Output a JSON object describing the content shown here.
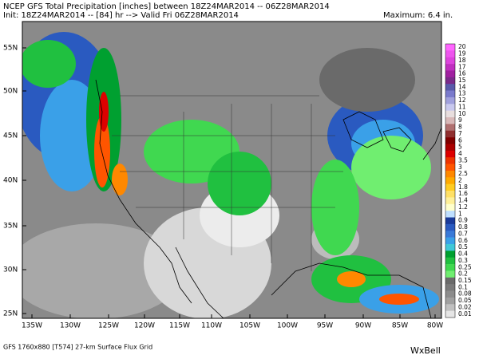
{
  "header": {
    "line1": "NCEP GFS Total Precipitation [inches] between 18Z24MAR2014 -- 06Z28MAR2014",
    "line2": "Init: 18Z24MAR2014 -- [84] hr --> Valid Fri 06Z28MAR2014",
    "maximum": "Maximum:   6.4 in."
  },
  "map": {
    "lat_labels": [
      "55N",
      "50N",
      "45N",
      "40N",
      "35N",
      "30N",
      "25N"
    ],
    "lon_labels": [
      "135W",
      "130W",
      "125W",
      "120W",
      "115W",
      "110W",
      "105W",
      "100W",
      "95W",
      "90W",
      "85W",
      "80W"
    ]
  },
  "legend": {
    "entries": [
      {
        "label": "20",
        "color": "#ff66ff"
      },
      {
        "label": "19",
        "color": "#ee55ee"
      },
      {
        "label": "18",
        "color": "#dd44dd"
      },
      {
        "label": "17",
        "color": "#c030c0"
      },
      {
        "label": "16",
        "color": "#a020a0"
      },
      {
        "label": "15",
        "color": "#7a2a8a"
      },
      {
        "label": "14",
        "color": "#5a5aaa"
      },
      {
        "label": "13",
        "color": "#7a7acc"
      },
      {
        "label": "12",
        "color": "#a0a0dd"
      },
      {
        "label": "11",
        "color": "#c8c8ee"
      },
      {
        "label": "10",
        "color": "#e8dede"
      },
      {
        "label": "9",
        "color": "#d8b8b8"
      },
      {
        "label": "8",
        "color": "#b07070"
      },
      {
        "label": "7",
        "color": "#903030"
      },
      {
        "label": "6",
        "color": "#800000"
      },
      {
        "label": "5",
        "color": "#aa0000"
      },
      {
        "label": "4",
        "color": "#dd0000"
      },
      {
        "label": "3.5",
        "color": "#ee3300"
      },
      {
        "label": "3",
        "color": "#ff5500"
      },
      {
        "label": "2.5",
        "color": "#ff8800"
      },
      {
        "label": "2",
        "color": "#ffaa00"
      },
      {
        "label": "1.8",
        "color": "#ffcc22"
      },
      {
        "label": "1.6",
        "color": "#ffe066"
      },
      {
        "label": "1.4",
        "color": "#fff099"
      },
      {
        "label": "1.2",
        "color": "#ffffcc"
      },
      {
        "label": "1",
        "color": "#bfdfff"
      },
      {
        "label": "0.9",
        "color": "#1a3a9a"
      },
      {
        "label": "0.8",
        "color": "#2a5ac0"
      },
      {
        "label": "0.7",
        "color": "#3a7ad8"
      },
      {
        "label": "0.6",
        "color": "#3aa0e8"
      },
      {
        "label": "0.5",
        "color": "#40c8d8"
      },
      {
        "label": "0.4",
        "color": "#00a030"
      },
      {
        "label": "0.3",
        "color": "#20c040"
      },
      {
        "label": "0.25",
        "color": "#40d850"
      },
      {
        "label": "0.2",
        "color": "#70ee70"
      },
      {
        "label": "0.15",
        "color": "#6a6a6a"
      },
      {
        "label": "0.1",
        "color": "#7a7a7a"
      },
      {
        "label": "0.08",
        "color": "#8c8c8c"
      },
      {
        "label": "0.05",
        "color": "#a0a0a0"
      },
      {
        "label": "0.02",
        "color": "#c0c0c0"
      },
      {
        "label": "0.01",
        "color": "#e6e6e6"
      }
    ]
  },
  "footer": {
    "grid": "GFS 1760x880 [T574] 27-km Surface Flux Grid",
    "brand": "WxBell"
  }
}
